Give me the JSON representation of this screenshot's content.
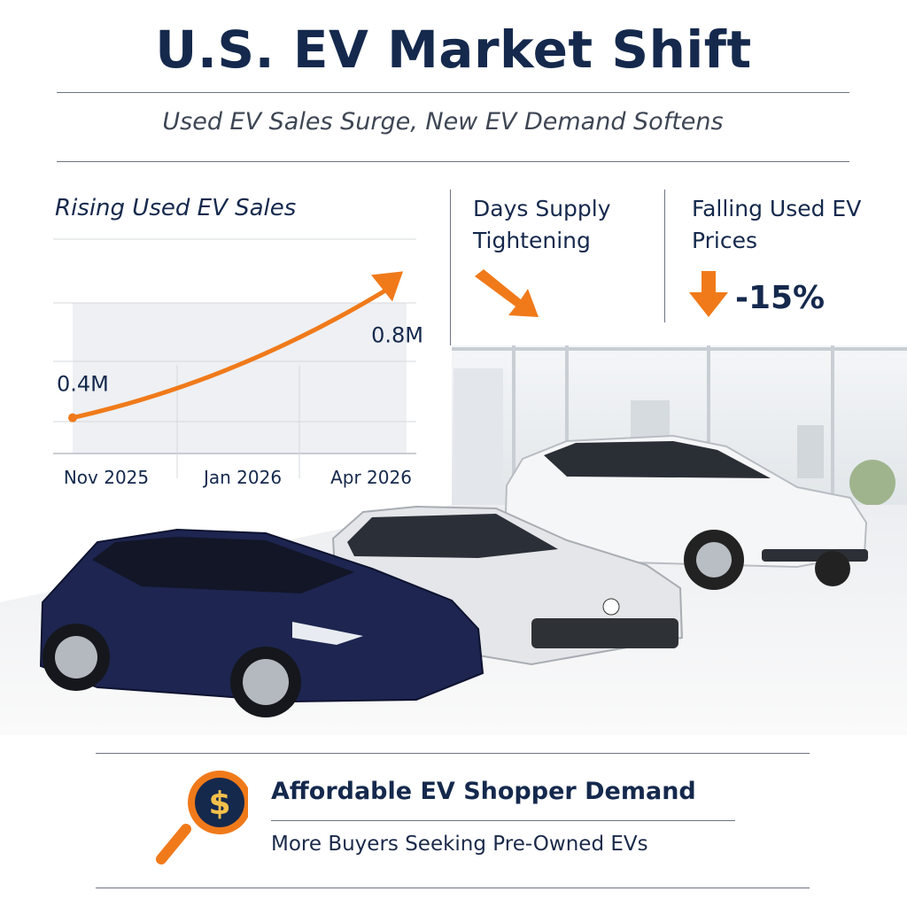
{
  "header": {
    "title": "U.S. EV Market Shift",
    "subtitle": "Used EV Sales Surge, New EV Demand Softens"
  },
  "chart_data": {
    "type": "line",
    "title": "Rising Used EV Sales",
    "categories": [
      "Nov 2025",
      "Jan 2026",
      "Apr 2026"
    ],
    "series": [
      {
        "values": [
          0.4,
          0.58,
          0.8
        ]
      }
    ],
    "data_labels": [
      "0.4M",
      "0.8M"
    ],
    "ylim": [
      0.3,
      0.9
    ],
    "grid": true,
    "line_color": "#f07a1a"
  },
  "panels": {
    "days_supply": {
      "title": "Days Supply Tightening",
      "icon": "arrow-down-right-icon"
    },
    "falling_prices": {
      "title": "Falling Used EV Prices",
      "value": "-15%",
      "icon": "arrow-down-icon"
    }
  },
  "footer": {
    "title": "Affordable EV Shopper Demand",
    "subtitle": "More Buyers Seeking Pre-Owned EVs",
    "icon": "dollar-magnifier-icon"
  },
  "colors": {
    "navy": "#15294d",
    "orange": "#f07a1a",
    "car_navy": "#1d2550"
  }
}
